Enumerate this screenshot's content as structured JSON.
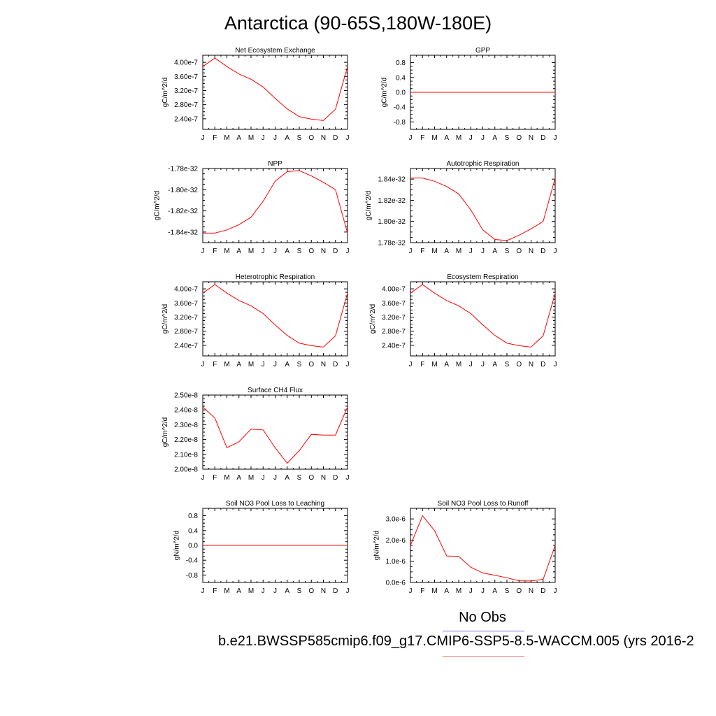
{
  "title": "Antarctica (90-65S,180W-180E)",
  "colors": {
    "series": "#ff0000",
    "obs_line": "#6d6de0",
    "model_line": "#e88080"
  },
  "legend": {
    "obs": "No Obs",
    "model": "b.e21.BWSSP585cmip6.f09_g17.CMIP6-SSP5-8.5-WACCM.005 (yrs 2016-2"
  },
  "chart_data": [
    {
      "type": "line",
      "title": "Net Ecosystem Exchange",
      "ylabel": "gC/m^2/d",
      "ylim": [
        2.1e-07,
        4.2e-07
      ],
      "yticks": [
        2.4e-07,
        2.8e-07,
        3.2e-07,
        3.6e-07,
        4e-07
      ],
      "ytick_labels": [
        "2.40e-7",
        "2.80e-7",
        "3.20e-7",
        "3.60e-7",
        "4.00e-7"
      ],
      "categories": [
        "J",
        "F",
        "M",
        "A",
        "M",
        "J",
        "J",
        "A",
        "S",
        "O",
        "N",
        "D",
        "J"
      ],
      "series": [
        {
          "values": [
            3.88e-07,
            4.12e-07,
            3.88e-07,
            3.67e-07,
            3.52e-07,
            3.3e-07,
            2.98e-07,
            2.68e-07,
            2.46e-07,
            2.39e-07,
            2.35e-07,
            2.67e-07,
            3.88e-07
          ]
        }
      ]
    },
    {
      "type": "line",
      "title": "GPP",
      "ylabel": "gC/m^2/d",
      "ylim": [
        -1.0,
        1.0
      ],
      "yticks": [
        -0.8,
        -0.4,
        0.0,
        0.4,
        0.8
      ],
      "ytick_labels": [
        "-0.8",
        "-0.4",
        "0.0",
        "0.4",
        "0.8"
      ],
      "categories": [
        "J",
        "F",
        "M",
        "A",
        "M",
        "J",
        "J",
        "A",
        "S",
        "O",
        "N",
        "D",
        "J"
      ],
      "series": [
        {
          "values": [
            0,
            0,
            0,
            0,
            0,
            0,
            0,
            0,
            0,
            0,
            0,
            0,
            0
          ]
        }
      ]
    },
    {
      "type": "line",
      "title": "NPP",
      "ylabel": "gC/m^2/d",
      "ylim": [
        -1.85e-32,
        -1.78e-32
      ],
      "yticks": [
        -1.84e-32,
        -1.82e-32,
        -1.8e-32,
        -1.78e-32
      ],
      "ytick_labels": [
        "-1.84e-32",
        "-1.82e-32",
        "-1.80e-32",
        "-1.78e-32"
      ],
      "categories": [
        "J",
        "F",
        "M",
        "A",
        "M",
        "J",
        "J",
        "A",
        "S",
        "O",
        "N",
        "D",
        "J"
      ],
      "series": [
        {
          "values": [
            -1.841e-32,
            -1.841e-32,
            -1.838e-32,
            -1.833e-32,
            -1.826e-32,
            -1.811e-32,
            -1.792e-32,
            -1.783e-32,
            -1.782e-32,
            -1.787e-32,
            -1.793e-32,
            -1.8e-32,
            -1.841e-32
          ]
        }
      ]
    },
    {
      "type": "line",
      "title": "Autotrophic Respiration",
      "ylabel": "gC/m^2/d",
      "ylim": [
        1.78e-32,
        1.85e-32
      ],
      "yticks": [
        1.78e-32,
        1.8e-32,
        1.82e-32,
        1.84e-32
      ],
      "ytick_labels": [
        "1.78e-32",
        "1.80e-32",
        "1.82e-32",
        "1.84e-32"
      ],
      "categories": [
        "J",
        "F",
        "M",
        "A",
        "M",
        "J",
        "J",
        "A",
        "S",
        "O",
        "N",
        "D",
        "J"
      ],
      "series": [
        {
          "values": [
            1.841e-32,
            1.841e-32,
            1.838e-32,
            1.833e-32,
            1.826e-32,
            1.811e-32,
            1.792e-32,
            1.783e-32,
            1.782e-32,
            1.787e-32,
            1.793e-32,
            1.8e-32,
            1.841e-32
          ]
        }
      ]
    },
    {
      "type": "line",
      "title": "Heterotrophic Respiration",
      "ylabel": "gC/m^2/d",
      "ylim": [
        2.1e-07,
        4.2e-07
      ],
      "yticks": [
        2.4e-07,
        2.8e-07,
        3.2e-07,
        3.6e-07,
        4e-07
      ],
      "ytick_labels": [
        "2.40e-7",
        "2.80e-7",
        "3.20e-7",
        "3.60e-7",
        "4.00e-7"
      ],
      "categories": [
        "J",
        "F",
        "M",
        "A",
        "M",
        "J",
        "J",
        "A",
        "S",
        "O",
        "N",
        "D",
        "J"
      ],
      "series": [
        {
          "values": [
            3.88e-07,
            4.12e-07,
            3.88e-07,
            3.67e-07,
            3.52e-07,
            3.3e-07,
            2.98e-07,
            2.68e-07,
            2.46e-07,
            2.39e-07,
            2.35e-07,
            2.67e-07,
            3.88e-07
          ]
        }
      ]
    },
    {
      "type": "line",
      "title": "Ecosystem Respiration",
      "ylabel": "gC/m^2/d",
      "ylim": [
        2.1e-07,
        4.2e-07
      ],
      "yticks": [
        2.4e-07,
        2.8e-07,
        3.2e-07,
        3.6e-07,
        4e-07
      ],
      "ytick_labels": [
        "2.40e-7",
        "2.80e-7",
        "3.20e-7",
        "3.60e-7",
        "4.00e-7"
      ],
      "categories": [
        "J",
        "F",
        "M",
        "A",
        "M",
        "J",
        "J",
        "A",
        "S",
        "O",
        "N",
        "D",
        "J"
      ],
      "series": [
        {
          "values": [
            3.88e-07,
            4.12e-07,
            3.88e-07,
            3.67e-07,
            3.52e-07,
            3.3e-07,
            2.98e-07,
            2.68e-07,
            2.46e-07,
            2.39e-07,
            2.35e-07,
            2.67e-07,
            3.88e-07
          ]
        }
      ]
    },
    {
      "type": "line",
      "title": "Surface CH4 Flux",
      "ylabel": "gC/m^2/d",
      "ylim": [
        2e-08,
        2.5e-08
      ],
      "yticks": [
        2e-08,
        2.1e-08,
        2.2e-08,
        2.3e-08,
        2.4e-08,
        2.5e-08
      ],
      "ytick_labels": [
        "2.00e-8",
        "2.10e-8",
        "2.20e-8",
        "2.30e-8",
        "2.40e-8",
        "2.50e-8"
      ],
      "categories": [
        "J",
        "F",
        "M",
        "A",
        "M",
        "J",
        "J",
        "A",
        "S",
        "O",
        "N",
        "D",
        "J"
      ],
      "series": [
        {
          "values": [
            2.42e-08,
            2.345e-08,
            2.145e-08,
            2.185e-08,
            2.27e-08,
            2.265e-08,
            2.145e-08,
            2.04e-08,
            2.125e-08,
            2.235e-08,
            2.23e-08,
            2.23e-08,
            2.42e-08
          ]
        }
      ]
    },
    {
      "type": "line",
      "title": "Soil NO3 Pool Loss to Leaching",
      "ylabel": "gN/m^2/d",
      "ylim": [
        -1.0,
        1.0
      ],
      "yticks": [
        -0.8,
        -0.4,
        0.0,
        0.4,
        0.8
      ],
      "ytick_labels": [
        "-0.8",
        "-0.4",
        "0.0",
        "0.4",
        "0.8"
      ],
      "categories": [
        "J",
        "F",
        "M",
        "A",
        "M",
        "J",
        "J",
        "A",
        "S",
        "O",
        "N",
        "D",
        "J"
      ],
      "series": [
        {
          "values": [
            0,
            0,
            0,
            0,
            0,
            0,
            0,
            0,
            0,
            0,
            0,
            0,
            0
          ]
        }
      ]
    },
    {
      "type": "line",
      "title": "Soil NO3 Pool Loss to Runoff",
      "ylabel": "gN/m^2/d",
      "ylim": [
        0,
        3.5e-06
      ],
      "yticks": [
        0,
        1e-06,
        2e-06,
        3e-06
      ],
      "ytick_labels": [
        "0.0e-6",
        "1.0e-6",
        "2.0e-6",
        "3.0e-6"
      ],
      "categories": [
        "J",
        "F",
        "M",
        "A",
        "M",
        "J",
        "J",
        "A",
        "S",
        "O",
        "N",
        "D",
        "J"
      ],
      "series": [
        {
          "values": [
            1.75e-06,
            3.15e-06,
            2.45e-06,
            1.25e-06,
            1.23e-06,
            7.2e-07,
            4.5e-07,
            3.4e-07,
            2.2e-07,
            8e-08,
            7e-08,
            1.5e-07,
            1.75e-06
          ]
        }
      ]
    }
  ]
}
